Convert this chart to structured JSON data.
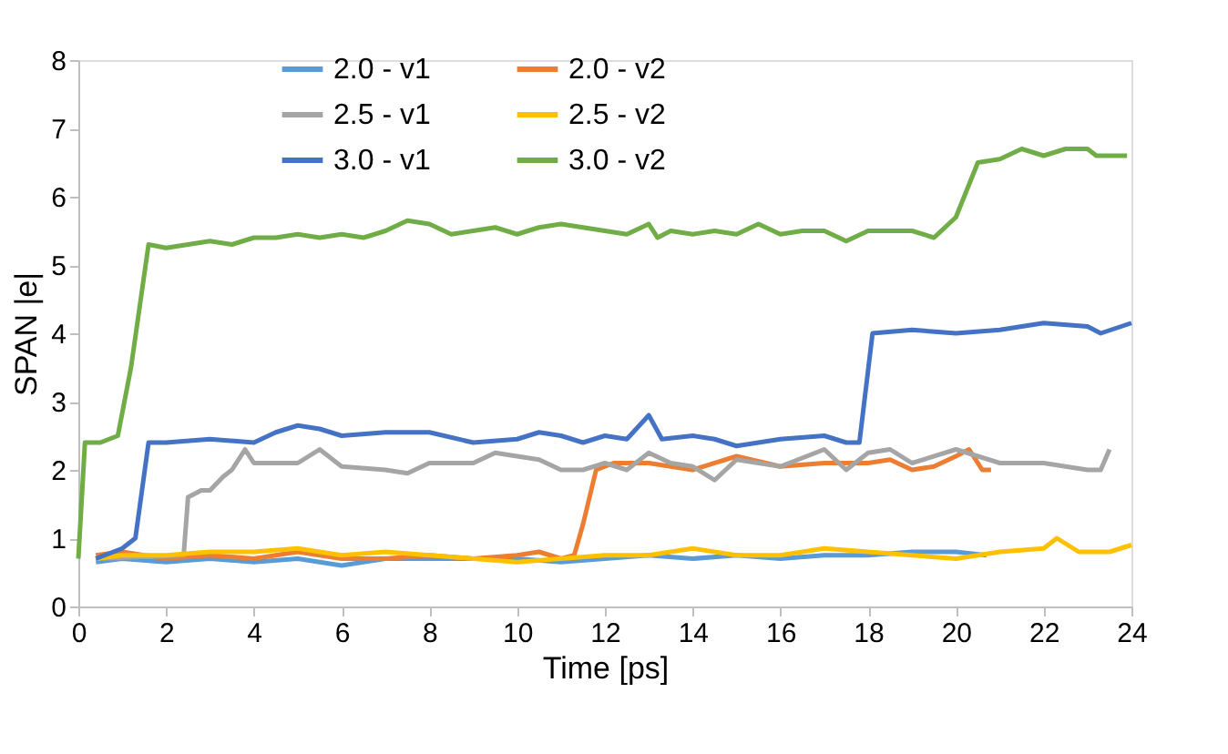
{
  "chart_data": {
    "type": "line",
    "xlabel": "Time [ps]",
    "ylabel": "SPAN |e|",
    "xlim": [
      0,
      24
    ],
    "xticks": [
      0,
      2,
      4,
      6,
      8,
      10,
      12,
      14,
      16,
      18,
      20,
      22,
      24
    ],
    "ylim": [
      0,
      8
    ],
    "yticks": [
      0,
      1,
      2,
      3,
      4,
      5,
      6,
      7,
      8
    ],
    "grid": false,
    "legend": "top",
    "marker": "none",
    "line_style": "solid",
    "series": [
      {
        "name": "2.0 - v1",
        "color": "#5b9bd5",
        "x": [
          0.4,
          1,
          2,
          3,
          4,
          5,
          6,
          7,
          8,
          9,
          10,
          11,
          12,
          13,
          14,
          15,
          16,
          17,
          18,
          19,
          20,
          20.7
        ],
        "values": [
          0.65,
          0.7,
          0.65,
          0.7,
          0.65,
          0.7,
          0.6,
          0.7,
          0.7,
          0.7,
          0.7,
          0.65,
          0.7,
          0.75,
          0.7,
          0.75,
          0.7,
          0.75,
          0.75,
          0.8,
          0.8,
          0.75
        ]
      },
      {
        "name": "2.0 - v2",
        "color": "#ed7d31",
        "x": [
          0.4,
          1,
          2,
          3,
          4,
          5,
          6,
          7,
          8,
          9,
          10,
          10.5,
          11,
          11.3,
          11.5,
          11.8,
          12.2,
          13,
          14,
          15,
          16,
          17,
          18,
          18.5,
          19,
          19.5,
          20,
          20.3,
          20.6,
          20.8
        ],
        "values": [
          0.75,
          0.8,
          0.7,
          0.75,
          0.7,
          0.8,
          0.7,
          0.7,
          0.75,
          0.7,
          0.75,
          0.8,
          0.7,
          0.75,
          1.2,
          2.0,
          2.1,
          2.1,
          2.0,
          2.2,
          2.05,
          2.1,
          2.1,
          2.15,
          2.0,
          2.05,
          2.2,
          2.3,
          2.0,
          2.0
        ]
      },
      {
        "name": "2.5 - v1",
        "color": "#a5a5a5",
        "x": [
          0.4,
          2.4,
          2.5,
          2.8,
          3,
          3.3,
          3.5,
          3.8,
          4,
          5,
          5.5,
          6,
          7,
          7.5,
          8,
          9,
          9.5,
          10,
          10.5,
          11,
          11.5,
          12,
          12.5,
          13,
          13.5,
          14,
          14.5,
          15,
          16,
          17,
          17.5,
          18,
          18.5,
          19,
          20,
          21,
          22,
          23,
          23.3,
          23.5
        ],
        "values": [
          0.7,
          0.75,
          1.6,
          1.7,
          1.7,
          1.9,
          2.0,
          2.3,
          2.1,
          2.1,
          2.3,
          2.05,
          2.0,
          1.95,
          2.1,
          2.1,
          2.25,
          2.2,
          2.15,
          2.0,
          2.0,
          2.1,
          2.0,
          2.25,
          2.1,
          2.05,
          1.85,
          2.15,
          2.05,
          2.3,
          2.0,
          2.25,
          2.3,
          2.1,
          2.3,
          2.1,
          2.1,
          2.0,
          2.0,
          2.3
        ]
      },
      {
        "name": "2.5 - v2",
        "color": "#ffc000",
        "x": [
          0.4,
          1,
          2,
          3,
          4,
          5,
          6,
          7,
          8,
          9,
          10,
          11,
          12,
          13,
          14,
          15,
          16,
          17,
          18,
          19,
          20,
          21,
          22,
          22.3,
          22.8,
          23.5,
          24
        ],
        "values": [
          0.7,
          0.75,
          0.75,
          0.8,
          0.8,
          0.85,
          0.75,
          0.8,
          0.75,
          0.7,
          0.65,
          0.7,
          0.75,
          0.75,
          0.85,
          0.75,
          0.75,
          0.85,
          0.8,
          0.75,
          0.7,
          0.8,
          0.85,
          1.0,
          0.8,
          0.8,
          0.9
        ]
      },
      {
        "name": "3.0 - v1",
        "color": "#4472c4",
        "x": [
          0.4,
          1,
          1.3,
          1.6,
          2,
          3,
          4,
          4.5,
          5,
          5.5,
          6,
          7,
          8,
          9,
          10,
          10.5,
          11,
          11.5,
          12,
          12.5,
          13,
          13.3,
          14,
          14.5,
          15,
          16,
          17,
          17.5,
          17.8,
          18.1,
          19,
          20,
          21,
          22,
          23,
          23.3,
          24
        ],
        "values": [
          0.7,
          0.85,
          1.0,
          2.4,
          2.4,
          2.45,
          2.4,
          2.55,
          2.65,
          2.6,
          2.5,
          2.55,
          2.55,
          2.4,
          2.45,
          2.55,
          2.5,
          2.4,
          2.5,
          2.45,
          2.8,
          2.45,
          2.5,
          2.45,
          2.35,
          2.45,
          2.5,
          2.4,
          2.4,
          4.0,
          4.05,
          4.0,
          4.05,
          4.15,
          4.1,
          4.0,
          4.15
        ]
      },
      {
        "name": "3.0 - v2",
        "color": "#70ad47",
        "x": [
          0,
          0.15,
          0.5,
          0.9,
          1.2,
          1.6,
          2,
          2.5,
          3,
          3.5,
          4,
          4.5,
          5,
          5.5,
          6,
          6.5,
          7,
          7.5,
          8,
          8.5,
          9,
          9.5,
          10,
          10.5,
          11,
          11.5,
          12,
          12.5,
          13,
          13.2,
          13.5,
          14,
          14.5,
          15,
          15.5,
          16,
          16.5,
          17,
          17.5,
          18,
          19,
          19.5,
          20,
          20.5,
          21,
          21.5,
          22,
          22.5,
          23,
          23.2,
          23.5,
          23.9
        ],
        "values": [
          0.7,
          2.4,
          2.4,
          2.5,
          3.5,
          5.3,
          5.25,
          5.3,
          5.35,
          5.3,
          5.4,
          5.4,
          5.45,
          5.4,
          5.45,
          5.4,
          5.5,
          5.65,
          5.6,
          5.45,
          5.5,
          5.55,
          5.45,
          5.55,
          5.6,
          5.55,
          5.5,
          5.45,
          5.6,
          5.4,
          5.5,
          5.45,
          5.5,
          5.45,
          5.6,
          5.45,
          5.5,
          5.5,
          5.35,
          5.5,
          5.5,
          5.4,
          5.7,
          6.5,
          6.55,
          6.7,
          6.6,
          6.7,
          6.7,
          6.6,
          6.6,
          6.6
        ]
      }
    ]
  }
}
